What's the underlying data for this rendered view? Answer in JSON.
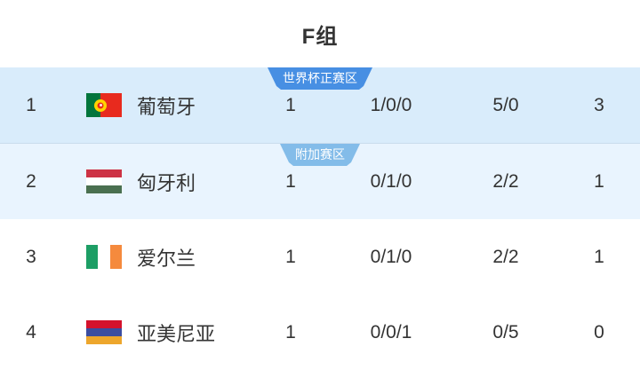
{
  "group": {
    "title": "F组"
  },
  "zones": {
    "world_cup": {
      "label": "世界杯正赛区",
      "color": "#478fe3"
    },
    "playoff": {
      "label": "附加赛区",
      "color": "#83bce9"
    }
  },
  "colors": {
    "row_highlight_1": "#d9ecfb",
    "row_highlight_2": "#e9f4fe",
    "badge_world_cup": "#478fe3",
    "badge_playoff": "#83bce9",
    "text": "#333333"
  },
  "table": {
    "rows": [
      {
        "rank": "1",
        "team": "葡萄牙",
        "badge": {
          "label": "世界杯正赛区",
          "color": "#478fe3"
        },
        "played": "1",
        "wdl": "1/0/0",
        "goals": "5/0",
        "points": "3",
        "flag": {
          "orientation": "vertical",
          "stripes": [
            {
              "color": "#02753c",
              "size": 2
            },
            {
              "color": "#e82a1e",
              "size": 3
            }
          ],
          "emblem": {
            "at": "40%",
            "outer": "#ffd500",
            "inner": "#e82a1e"
          }
        }
      },
      {
        "rank": "2",
        "team": "匈牙利",
        "badge": {
          "label": "附加赛区",
          "color": "#83bce9"
        },
        "played": "1",
        "wdl": "0/1/0",
        "goals": "2/2",
        "points": "1",
        "flag": {
          "orientation": "horizontal",
          "stripes": [
            {
              "color": "#cd3345",
              "size": 1
            },
            {
              "color": "#ffffff",
              "size": 1
            },
            {
              "color": "#4a7050",
              "size": 1
            }
          ]
        }
      },
      {
        "rank": "3",
        "team": "爱尔兰",
        "badge": null,
        "played": "1",
        "wdl": "0/1/0",
        "goals": "2/2",
        "points": "1",
        "flag": {
          "orientation": "vertical",
          "stripes": [
            {
              "color": "#1d9e65",
              "size": 1
            },
            {
              "color": "#ffffff",
              "size": 1
            },
            {
              "color": "#f58a3d",
              "size": 1
            }
          ]
        }
      },
      {
        "rank": "4",
        "team": "亚美尼亚",
        "badge": null,
        "played": "1",
        "wdl": "0/0/1",
        "goals": "0/5",
        "points": "0",
        "flag": {
          "orientation": "horizontal",
          "stripes": [
            {
              "color": "#d5122c",
              "size": 1
            },
            {
              "color": "#3b4da0",
              "size": 1
            },
            {
              "color": "#eda62c",
              "size": 1
            }
          ]
        }
      }
    ]
  }
}
